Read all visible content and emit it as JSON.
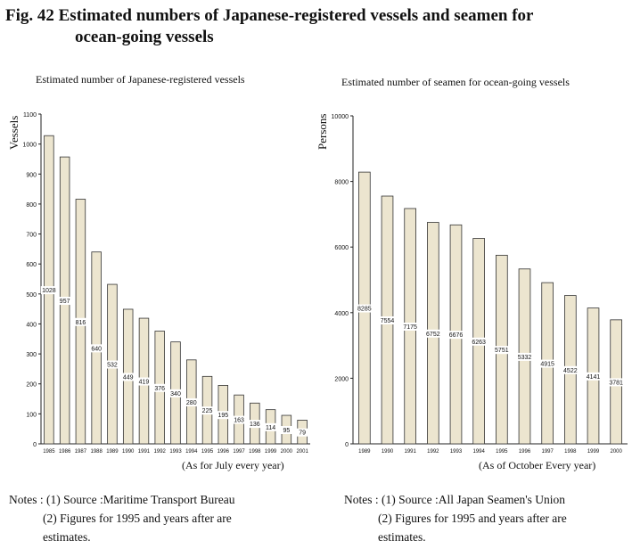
{
  "title": {
    "line1": "Fig. 42 Estimated numbers of Japanese-registered vessels and seamen for",
    "line2": "ocean-going vessels"
  },
  "chart_data": [
    {
      "type": "bar",
      "title": "Estimated number of Japanese-registered vessels",
      "ylabel": "Vessels",
      "footnote": "(As for July every year)",
      "categories": [
        "1985",
        "1986",
        "1987",
        "1988",
        "1989",
        "1990",
        "1991",
        "1992",
        "1993",
        "1994",
        "1995",
        "1996",
        "1997",
        "1998",
        "1999",
        "2000",
        "2001"
      ],
      "values": [
        1028,
        957,
        816,
        640,
        532,
        449,
        419,
        376,
        340,
        280,
        225,
        195,
        163,
        136,
        114,
        95,
        79
      ],
      "ylim": [
        0,
        1100
      ],
      "yticks": [
        0,
        100,
        200,
        300,
        400,
        500,
        600,
        700,
        800,
        900,
        1000,
        1100
      ],
      "bar_color": "#ece5cf",
      "estimate_from": "1995"
    },
    {
      "type": "bar",
      "title": "Estimated number of seamen for ocean-going vessels",
      "ylabel": "Persons",
      "footnote": "(As of October Every year)",
      "categories": [
        "1989",
        "1990",
        "1991",
        "1992",
        "1993",
        "1994",
        "1995",
        "1996",
        "1997",
        "1998",
        "1999",
        "2000"
      ],
      "values": [
        8285,
        7554,
        7175,
        6752,
        6676,
        6263,
        5751,
        5332,
        4915,
        4522,
        4141,
        3781
      ],
      "ylim": [
        0,
        10000
      ],
      "yticks": [
        0,
        2000,
        4000,
        6000,
        8000,
        10000
      ],
      "bar_color": "#ece5cf",
      "estimate_from": "1995"
    }
  ],
  "notes_left": {
    "label": "Notes :",
    "n1": "(1) Source :Maritime Transport Bureau",
    "n2": "(2) Figures for 1995 and years after are",
    "n3": "estimates."
  },
  "notes_right": {
    "label": "Notes :",
    "n1": "(1) Source :All Japan Seamen's Union",
    "n2": "(2) Figures for 1995 and years after are",
    "n3": "estimates."
  }
}
